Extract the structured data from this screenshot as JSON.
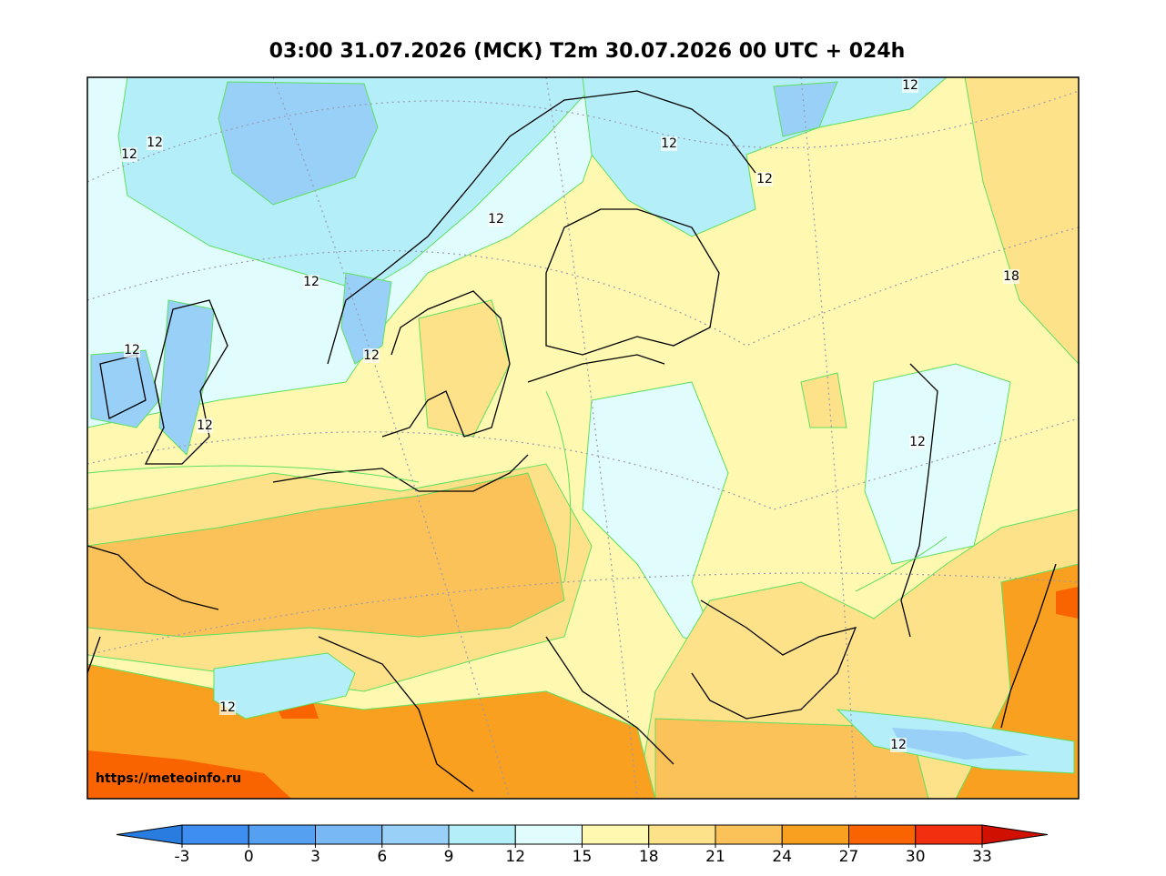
{
  "title": "03:00 31.07.2026 (МСК) T2m 30.07.2026 00 UTC + 024h",
  "source_url": "https://meteoinfo.ru",
  "contour_labels": [
    "12",
    "12",
    "12",
    "12",
    "12",
    "12",
    "12",
    "12",
    "12",
    "12",
    "18",
    "12",
    "12",
    "12"
  ],
  "colorbar": {
    "ticks": [
      -3,
      0,
      3,
      6,
      9,
      12,
      15,
      18,
      21,
      24,
      27,
      30,
      33
    ],
    "colors": [
      "#2a7de0",
      "#3d8ef0",
      "#55a0f0",
      "#78b8f5",
      "#98d0f8",
      "#b4eef8",
      "#e0fcfc",
      "#fff8b0",
      "#fde28a",
      "#fbc25a",
      "#f9a020",
      "#fa6400",
      "#f23010",
      "#d01000"
    ]
  }
}
